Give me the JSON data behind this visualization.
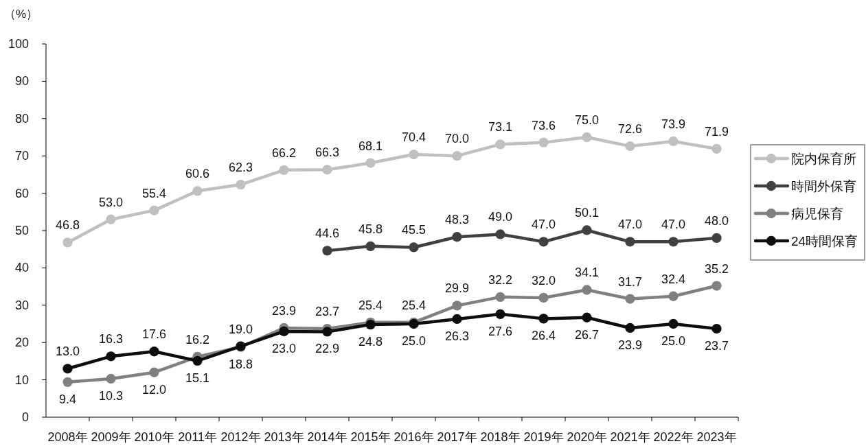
{
  "chart_data": {
    "type": "line",
    "ylabel": "（%）",
    "categories": [
      "2008年",
      "2009年",
      "2010年",
      "2011年",
      "2012年",
      "2013年",
      "2014年",
      "2015年",
      "2016年",
      "2017年",
      "2018年",
      "2019年",
      "2020年",
      "2021年",
      "2022年",
      "2023年"
    ],
    "ylim": [
      0,
      100
    ],
    "yticks": [
      0,
      10,
      20,
      30,
      40,
      50,
      60,
      70,
      80,
      90,
      100
    ],
    "legend": "right",
    "marker": "circle",
    "line_style": "solid",
    "series": [
      {
        "name": "院内保育所",
        "color": "#c0c0c0",
        "values": [
          46.8,
          53.0,
          55.4,
          60.6,
          62.3,
          66.2,
          66.3,
          68.1,
          70.4,
          70.0,
          73.1,
          73.6,
          75.0,
          72.6,
          73.9,
          71.9
        ],
        "value_labels": [
          "46.8",
          "53.0",
          "55.4",
          "60.6",
          "62.3",
          "66.2",
          "66.3",
          "68.1",
          "70.4",
          "70.0",
          "73.1",
          "73.6",
          "75.0",
          "72.6",
          "73.9",
          "71.9"
        ]
      },
      {
        "name": "時間外保育",
        "color": "#404040",
        "values": [
          null,
          null,
          null,
          null,
          null,
          null,
          44.6,
          45.8,
          45.5,
          48.3,
          49.0,
          47.0,
          50.1,
          47.0,
          47.0,
          48.0
        ],
        "value_labels": [
          null,
          null,
          null,
          null,
          null,
          null,
          "44.6",
          "45.8",
          "45.5",
          "48.3",
          "49.0",
          "47.0",
          "50.1",
          "47.0",
          "47.0",
          "48.0"
        ]
      },
      {
        "name": "病児保育",
        "color": "#808080",
        "values": [
          9.4,
          10.3,
          12.0,
          16.2,
          18.8,
          23.9,
          23.7,
          25.4,
          25.4,
          29.9,
          32.2,
          32.0,
          34.1,
          31.7,
          32.4,
          35.2
        ],
        "value_labels": [
          "9.4",
          "10.3",
          "12.0",
          "16.2",
          "18.8",
          "23.9",
          "23.7",
          "25.4",
          "25.4",
          "29.9",
          "32.2",
          "32.0",
          "34.1",
          "31.7",
          "32.4",
          "35.2"
        ]
      },
      {
        "name": "24時間保育",
        "color": "#0d0d0d",
        "values": [
          13.0,
          16.3,
          17.6,
          15.1,
          19.0,
          23.0,
          22.9,
          24.8,
          25.0,
          26.3,
          27.6,
          26.4,
          26.7,
          23.9,
          25.0,
          23.7
        ],
        "value_labels": [
          "13.0",
          "16.3",
          "17.6",
          "15.1",
          "19.0",
          "23.0",
          "22.9",
          "24.8",
          "25.0",
          "26.3",
          "27.6",
          "26.4",
          "26.7",
          "23.9",
          "25.0",
          "23.7"
        ]
      }
    ]
  }
}
